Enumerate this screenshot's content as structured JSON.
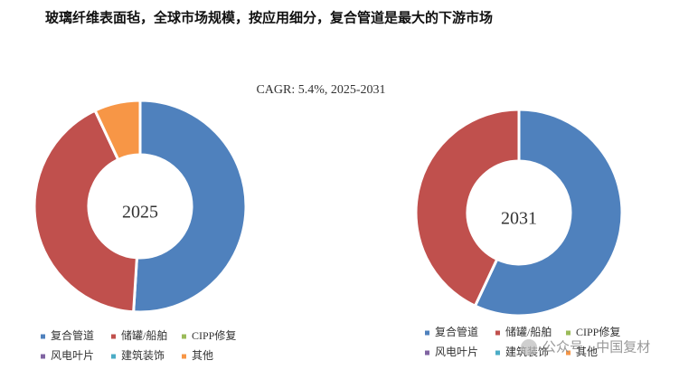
{
  "title": "玻璃纤维表面毡，全球市场规模，按应用细分，复合管道是最大的下游市场",
  "subtitle": "CAGR: 5.4%, 2025-2031",
  "watermark": "公众号 · 中国复材",
  "chart_data": [
    {
      "type": "pie",
      "label": "2025",
      "categories": [
        "复合管道",
        "储罐/船舶",
        "CIPP修复",
        "风电叶片",
        "建筑装饰",
        "其他"
      ],
      "colors": [
        "#4f81bd",
        "#c0504d",
        "#9bbb59",
        "#8064a2",
        "#4bacc6",
        "#f79646"
      ],
      "values": [
        51,
        42,
        0,
        0,
        0,
        7
      ]
    },
    {
      "type": "pie",
      "label": "2031",
      "categories": [
        "复合管道",
        "储罐/船舶",
        "CIPP修复",
        "风电叶片",
        "建筑装饰",
        "其他"
      ],
      "colors": [
        "#4f81bd",
        "#c0504d",
        "#9bbb59",
        "#8064a2",
        "#4bacc6",
        "#f79646"
      ],
      "values": [
        57,
        43,
        0,
        0,
        0,
        0
      ]
    }
  ]
}
